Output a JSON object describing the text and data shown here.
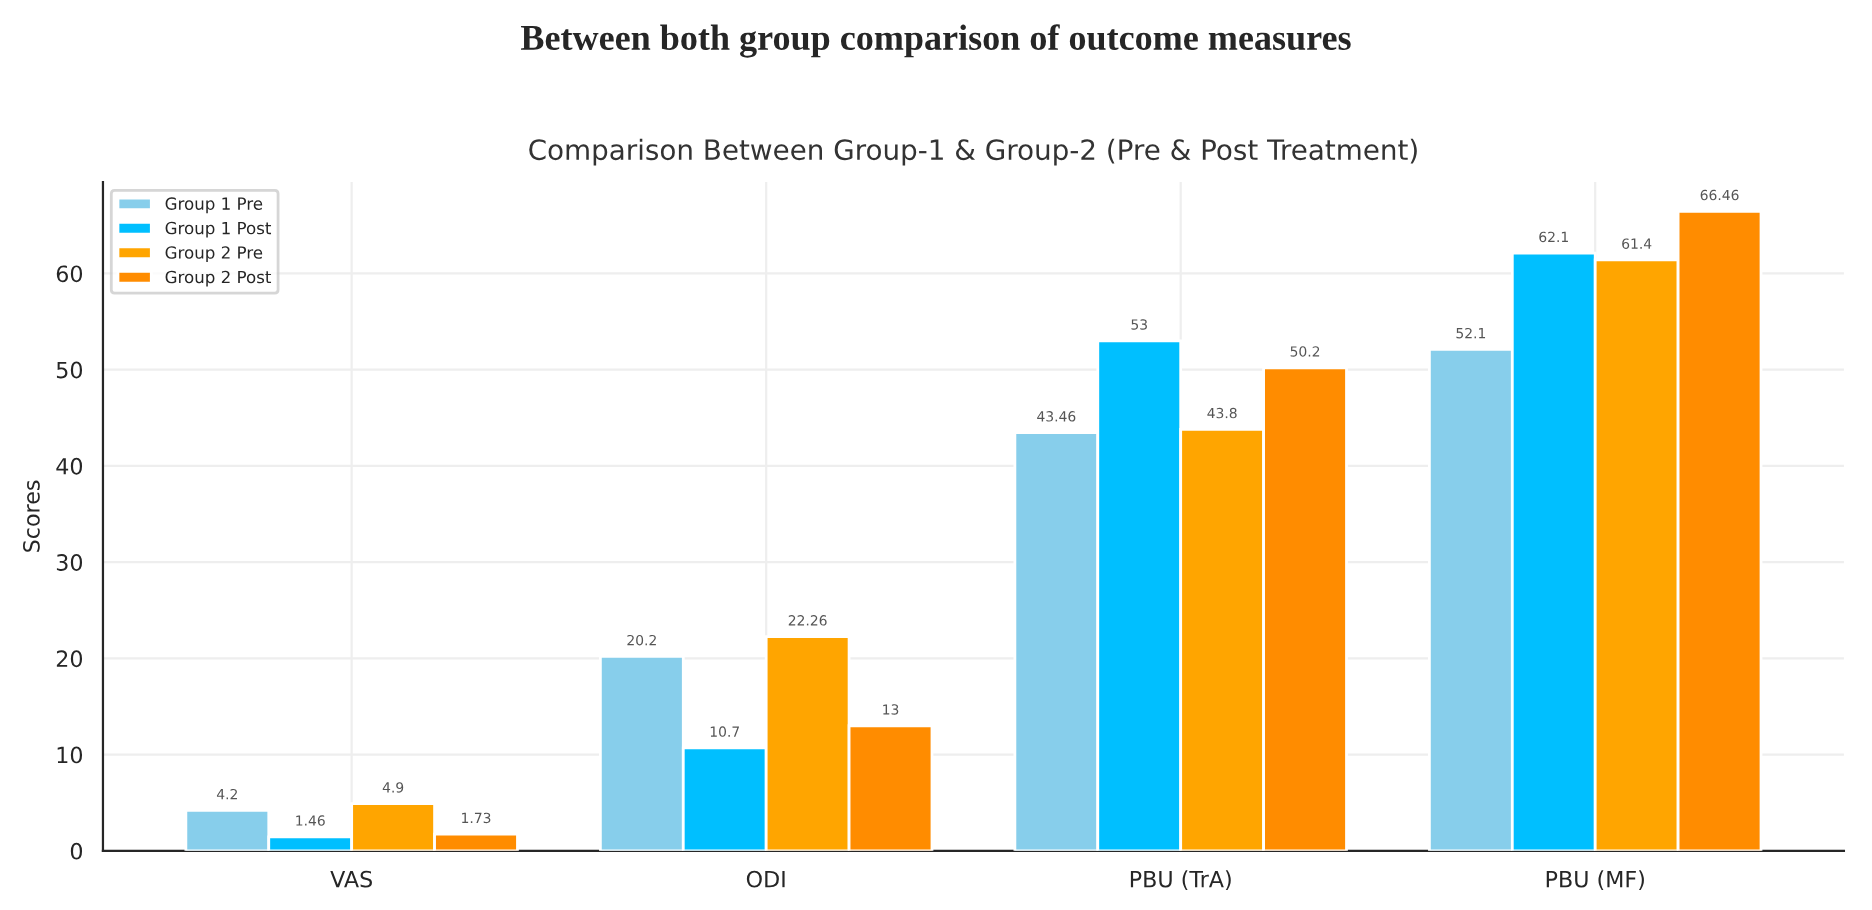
{
  "chart_data": {
    "type": "bar",
    "title": "Between both group comparison of outcome measures",
    "subtitle": "Comparison Between Group-1 & Group-2 (Pre & Post Treatment)",
    "ylabel": "Scores",
    "categories": [
      "VAS",
      "ODI",
      "PBU (TrA)",
      "PBU (MF)"
    ],
    "series": [
      {
        "name": "Group 1 Pre",
        "color": "#87ceeb",
        "values": [
          4.2,
          20.2,
          43.46,
          52.1
        ]
      },
      {
        "name": "Group 1 Post",
        "color": "#00bfff",
        "values": [
          1.46,
          10.7,
          53,
          62.1
        ]
      },
      {
        "name": "Group 2 Pre",
        "color": "#ffa500",
        "values": [
          4.9,
          22.26,
          43.8,
          61.4
        ]
      },
      {
        "name": "Group 2 Post",
        "color": "#ff8c00",
        "values": [
          1.73,
          13,
          50.2,
          66.46
        ]
      }
    ],
    "ylim": [
      0,
      69.5
    ],
    "yticks": [
      0,
      10,
      20,
      30,
      40,
      50,
      60
    ],
    "grid": true,
    "legend": "top left",
    "data_labels": true
  }
}
